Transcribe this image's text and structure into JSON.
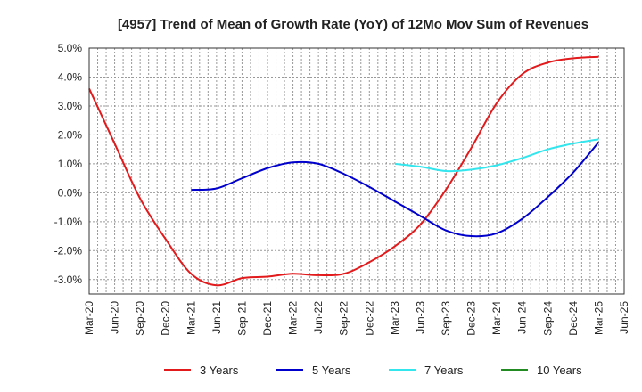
{
  "chart_data": {
    "type": "line",
    "title": "[4957]  Trend of Mean of Growth Rate (YoY) of 12Mo Mov Sum of Revenues",
    "xlabel": "",
    "ylabel": "",
    "ylim": [
      -3.5,
      5.0
    ],
    "y_ticks": [
      5.0,
      4.0,
      3.0,
      2.0,
      1.0,
      0.0,
      -1.0,
      -2.0,
      -3.0
    ],
    "y_tick_labels": [
      "5.0%",
      "4.0%",
      "3.0%",
      "2.0%",
      "1.0%",
      "0.0%",
      "-1.0%",
      "-2.0%",
      "-3.0%"
    ],
    "x_tick_labels": [
      "Mar-20",
      "Jun-20",
      "Sep-20",
      "Dec-20",
      "Mar-21",
      "Jun-21",
      "Sep-21",
      "Dec-21",
      "Mar-22",
      "Jun-22",
      "Sep-22",
      "Dec-22",
      "Mar-23",
      "Jun-23",
      "Sep-23",
      "Dec-23",
      "Mar-24",
      "Jun-24",
      "Sep-24",
      "Dec-24",
      "Mar-25",
      "Jun-25"
    ],
    "grid": true,
    "legend_position": "bottom",
    "series": [
      {
        "name": "3 Years",
        "color": "#e31a1c",
        "x": [
          0,
          1,
          2,
          3,
          4,
          5,
          6,
          7,
          8,
          9,
          10,
          11,
          12,
          13,
          14,
          15,
          16,
          17,
          18,
          19,
          20
        ],
        "values": [
          3.6,
          1.7,
          -0.2,
          -1.6,
          -2.8,
          -3.2,
          -2.95,
          -2.9,
          -2.8,
          -2.85,
          -2.8,
          -2.4,
          -1.85,
          -1.1,
          0.1,
          1.55,
          3.1,
          4.1,
          4.5,
          4.65,
          4.7
        ]
      },
      {
        "name": "5 Years",
        "color": "#0000cc",
        "x": [
          4,
          5,
          6,
          7,
          8,
          9,
          10,
          11,
          12,
          13,
          14,
          15,
          16,
          17,
          18,
          19,
          20
        ],
        "values": [
          0.1,
          0.15,
          0.5,
          0.85,
          1.05,
          1.0,
          0.65,
          0.2,
          -0.3,
          -0.8,
          -1.3,
          -1.5,
          -1.4,
          -0.9,
          -0.15,
          0.7,
          1.75
        ]
      },
      {
        "name": "7 Years",
        "color": "#33e6ee",
        "x": [
          12,
          13,
          14,
          15,
          16,
          17,
          18,
          19,
          20
        ],
        "values": [
          1.0,
          0.9,
          0.75,
          0.8,
          0.95,
          1.2,
          1.5,
          1.7,
          1.85
        ]
      },
      {
        "name": "10 Years",
        "color": "#228b22",
        "x": [],
        "values": []
      }
    ]
  }
}
